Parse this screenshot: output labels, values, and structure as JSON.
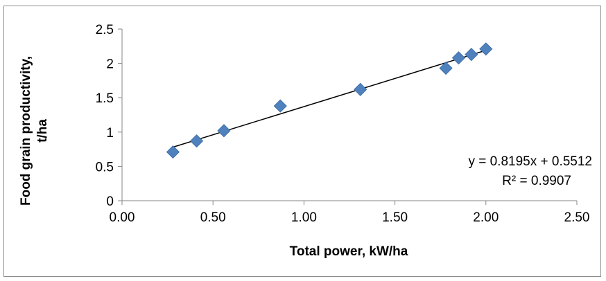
{
  "chart_data": {
    "type": "scatter",
    "title": "",
    "xlabel": "Total power, kW/ha",
    "ylabel_lines": [
      "Food grain productivity,",
      "t/ha"
    ],
    "xlim": [
      0,
      2.5
    ],
    "ylim": [
      0,
      2.5
    ],
    "x_ticks": [
      "0.00",
      "0.50",
      "1.00",
      "1.50",
      "2.00",
      "2.50"
    ],
    "y_ticks": [
      "0",
      "0.5",
      "1",
      "1.5",
      "2",
      "2.5"
    ],
    "grid": false,
    "legend": "none",
    "marker": "diamond",
    "marker_color": "#4f81bd",
    "points": [
      {
        "x": 0.28,
        "y": 0.71
      },
      {
        "x": 0.41,
        "y": 0.87
      },
      {
        "x": 0.56,
        "y": 1.02
      },
      {
        "x": 0.87,
        "y": 1.38
      },
      {
        "x": 1.31,
        "y": 1.62
      },
      {
        "x": 1.78,
        "y": 1.93
      },
      {
        "x": 1.85,
        "y": 2.08
      },
      {
        "x": 1.92,
        "y": 2.13
      },
      {
        "x": 2.0,
        "y": 2.21
      }
    ],
    "trendline": {
      "type": "linear",
      "slope": 0.8195,
      "intercept": 0.5512,
      "x_range": [
        0.28,
        2.0
      ],
      "color": "#000000",
      "equation_label": "y = 0.8195x + 0.5512",
      "r2_label": "R² = 0.9907"
    }
  }
}
